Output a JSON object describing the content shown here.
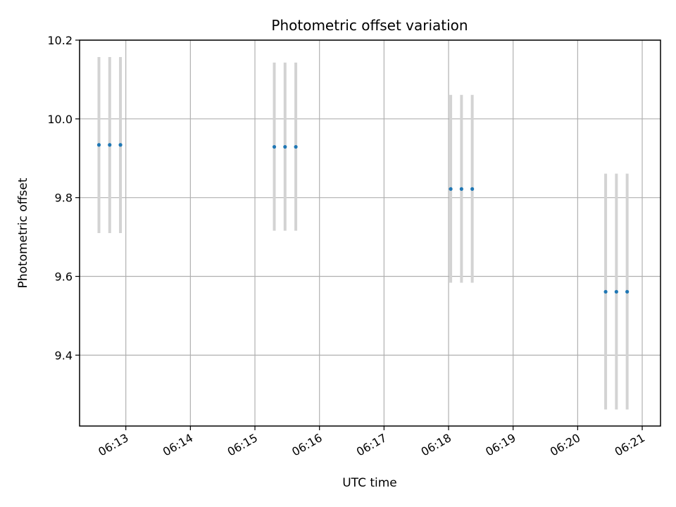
{
  "chart_data": {
    "type": "scatter",
    "title": "Photometric offset variation",
    "xlabel": "UTC time",
    "ylabel": "Photometric offset",
    "x_ticks": [
      "06:13",
      "06:14",
      "06:15",
      "06:16",
      "06:17",
      "06:18",
      "06:19",
      "06:20",
      "06:21"
    ],
    "y_ticks": [
      "9.4",
      "9.6",
      "9.8",
      "10.0",
      "10.2"
    ],
    "xlim": [
      "06:12:17",
      "06:21:17"
    ],
    "ylim": [
      9.22,
      10.2
    ],
    "grid": true,
    "points": [
      {
        "x": "06:12:35",
        "y": 9.934,
        "err_low": 9.71,
        "err_high": 10.157
      },
      {
        "x": "06:12:45",
        "y": 9.934,
        "err_low": 9.71,
        "err_high": 10.157
      },
      {
        "x": "06:12:55",
        "y": 9.934,
        "err_low": 9.71,
        "err_high": 10.157
      },
      {
        "x": "06:15:18",
        "y": 9.929,
        "err_low": 9.716,
        "err_high": 10.143
      },
      {
        "x": "06:15:28",
        "y": 9.929,
        "err_low": 9.716,
        "err_high": 10.143
      },
      {
        "x": "06:15:38",
        "y": 9.929,
        "err_low": 9.716,
        "err_high": 10.143
      },
      {
        "x": "06:18:02",
        "y": 9.822,
        "err_low": 9.584,
        "err_high": 10.061
      },
      {
        "x": "06:18:12",
        "y": 9.822,
        "err_low": 9.584,
        "err_high": 10.061
      },
      {
        "x": "06:18:22",
        "y": 9.822,
        "err_low": 9.584,
        "err_high": 10.061
      },
      {
        "x": "06:20:26",
        "y": 9.561,
        "err_low": 9.262,
        "err_high": 9.861
      },
      {
        "x": "06:20:36",
        "y": 9.561,
        "err_low": 9.262,
        "err_high": 9.861
      },
      {
        "x": "06:20:46",
        "y": 9.561,
        "err_low": 9.262,
        "err_high": 9.861
      }
    ],
    "marker_color": "#1f77b4",
    "errorbar_color": "#d3d3d3",
    "grid_color": "#b0b0b0"
  }
}
